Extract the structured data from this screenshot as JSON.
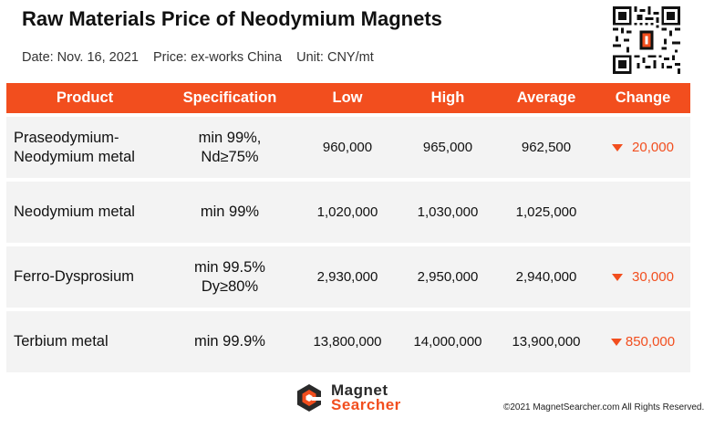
{
  "header": {
    "title": "Raw Materials Price of Neodymium Magnets",
    "subtitle": "Date: Nov. 16, 2021    Price: ex-works China    Unit: CNY/mt"
  },
  "colors": {
    "accent": "#f24e1e",
    "row_bg": "#f3f3f3",
    "header_text": "#ffffff"
  },
  "table": {
    "columns": [
      "Product",
      "Specification",
      "Low",
      "High",
      "Average",
      "Change"
    ],
    "rows": [
      {
        "product": [
          "Praseodymium-",
          "Neodymium metal"
        ],
        "spec": [
          "min 99%,",
          "Nd≥75%"
        ],
        "low": "960,000",
        "high": "965,000",
        "average": "962,500",
        "change": "20,000",
        "direction": "down"
      },
      {
        "product": [
          "Neodymium metal"
        ],
        "spec": [
          "min 99%"
        ],
        "low": "1,020,000",
        "high": "1,030,000",
        "average": "1,025,000",
        "change": "",
        "direction": ""
      },
      {
        "product": [
          "Ferro-Dysprosium"
        ],
        "spec": [
          "min 99.5%",
          "Dy≥80%"
        ],
        "low": "2,930,000",
        "high": "2,950,000",
        "average": "2,940,000",
        "change": "30,000",
        "direction": "down"
      },
      {
        "product": [
          "Terbium metal"
        ],
        "spec": [
          "min 99.9%"
        ],
        "low": "13,800,000",
        "high": "14,000,000",
        "average": "13,900,000",
        "change": "850,000",
        "direction": "down"
      }
    ]
  },
  "footer": {
    "logo_line1": "Magnet",
    "logo_line2": "Searcher",
    "copyright": "©2021 MagnetSearcher.com All Rights Reserved."
  },
  "icons": {
    "qr": "qr-code-icon",
    "logo": "magnet-searcher-logo-icon",
    "down": "triangle-down-icon"
  }
}
